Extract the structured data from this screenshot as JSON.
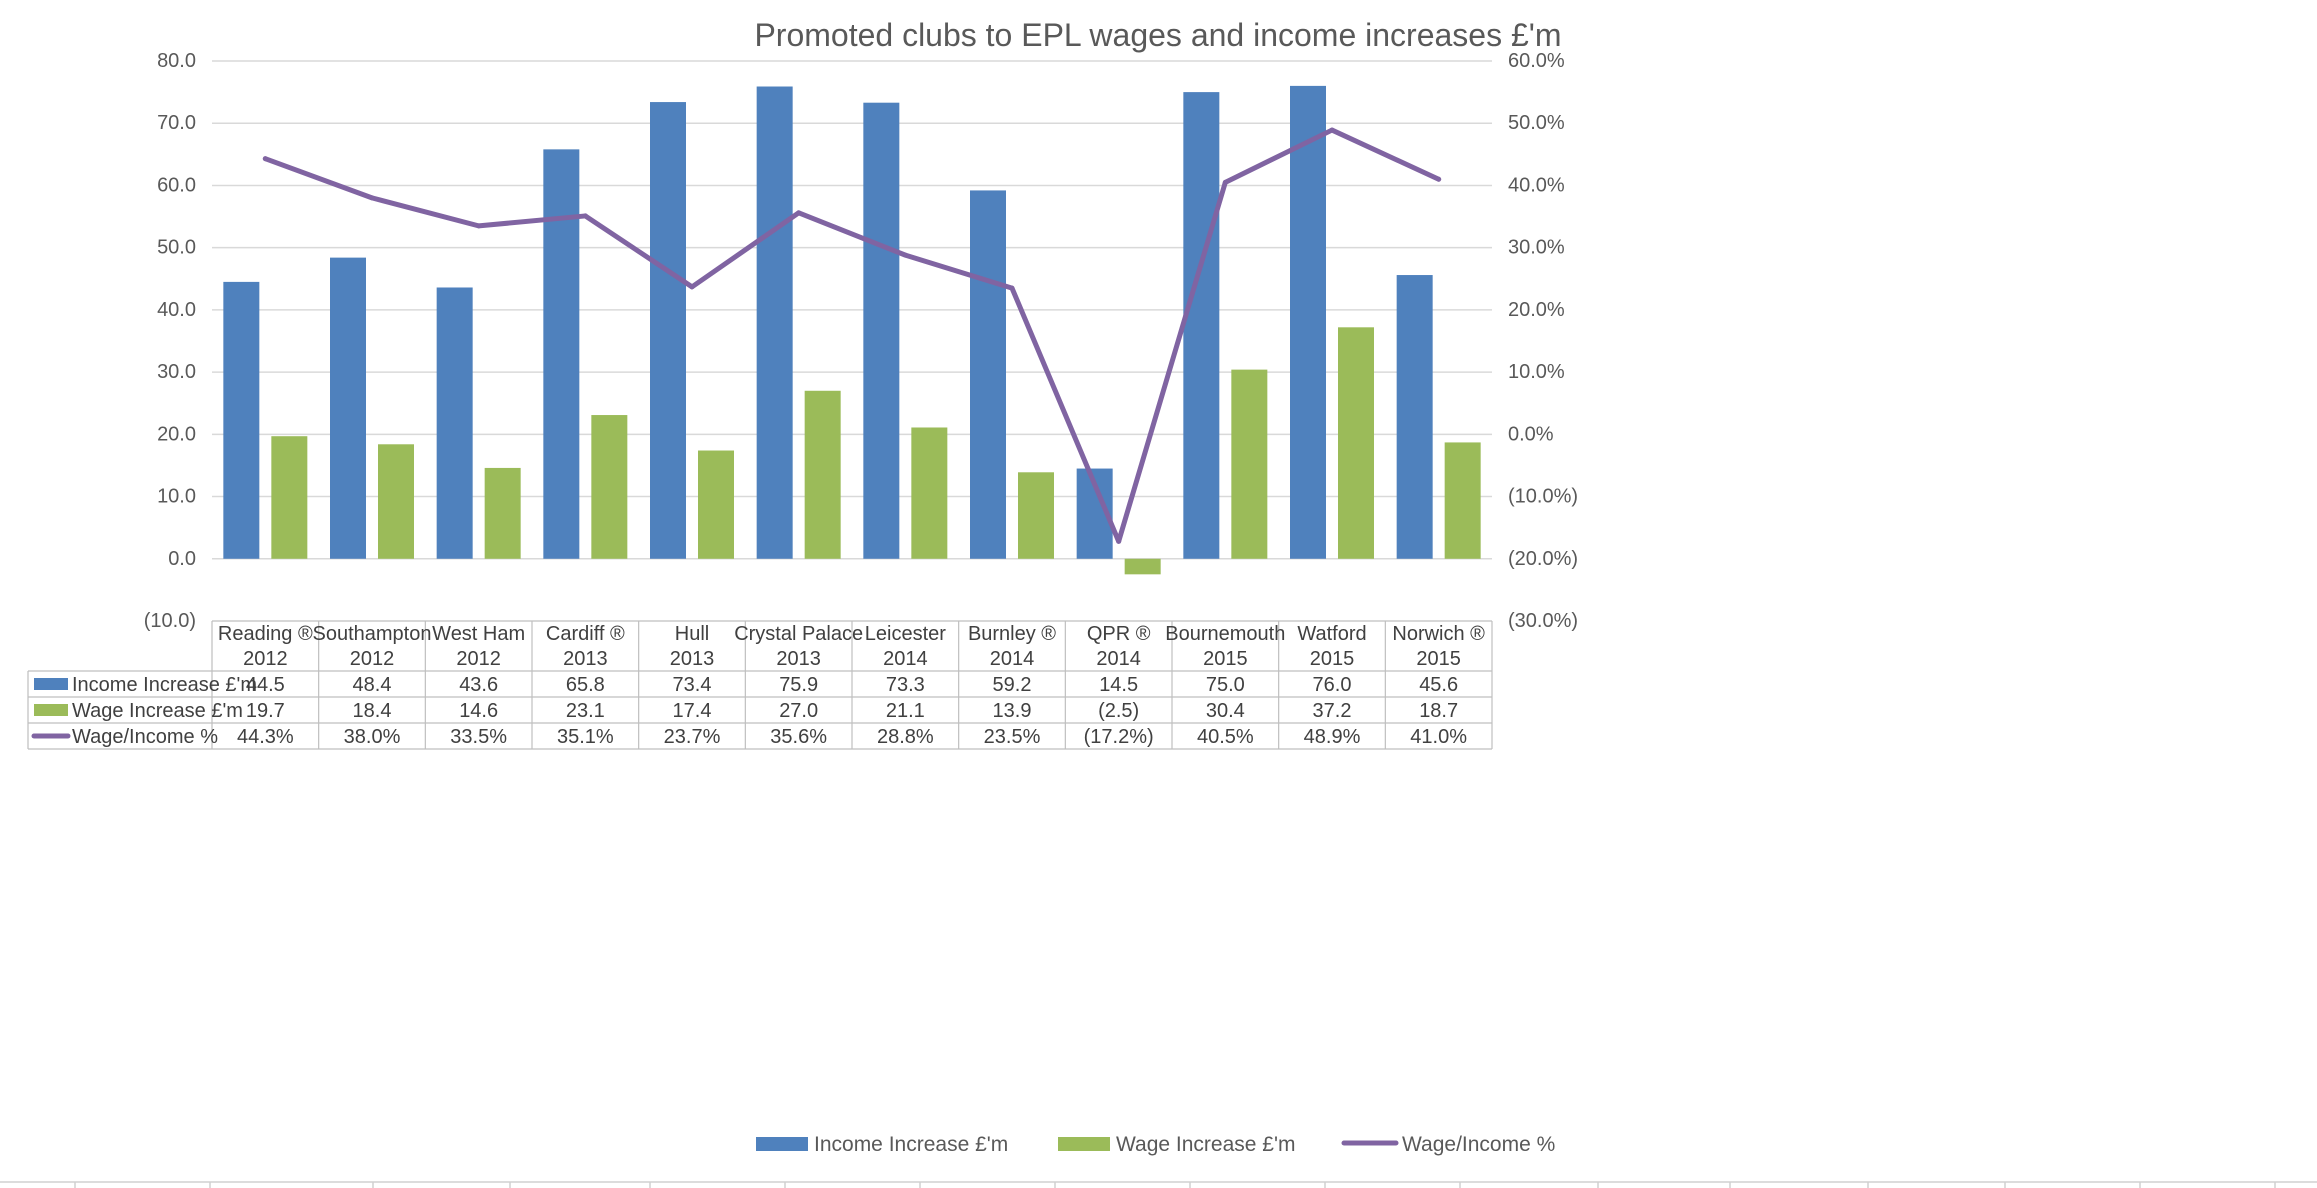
{
  "chart_data": {
    "type": "bar",
    "title": "Promoted clubs to EPL wages and income increases £'m",
    "categories": [
      {
        "club": "Reading ®",
        "year": "2012"
      },
      {
        "club": "Southampton",
        "year": "2012"
      },
      {
        "club": "West Ham",
        "year": "2012"
      },
      {
        "club": "Cardiff ®",
        "year": "2013"
      },
      {
        "club": "Hull",
        "year": "2013"
      },
      {
        "club": "Crystal Palace",
        "year": "2013"
      },
      {
        "club": "Leicester",
        "year": "2014"
      },
      {
        "club": "Burnley ®",
        "year": "2014"
      },
      {
        "club": "QPR ®",
        "year": "2014"
      },
      {
        "club": "Bournemouth",
        "year": "2015"
      },
      {
        "club": "Watford",
        "year": "2015"
      },
      {
        "club": "Norwich ®",
        "year": "2015"
      }
    ],
    "series": [
      {
        "name": "Income Increase £'m",
        "kind": "bar",
        "axis": "left",
        "color": "#4f81bd",
        "values": [
          44.5,
          48.4,
          43.6,
          65.8,
          73.4,
          75.9,
          73.3,
          59.2,
          14.5,
          75.0,
          76.0,
          45.6
        ],
        "labels": [
          "44.5",
          "48.4",
          "43.6",
          "65.8",
          "73.4",
          "75.9",
          "73.3",
          "59.2",
          "14.5",
          "75.0",
          "76.0",
          "45.6"
        ]
      },
      {
        "name": "Wage Increase £'m",
        "kind": "bar",
        "axis": "left",
        "color": "#9bbb59",
        "values": [
          19.7,
          18.4,
          14.6,
          23.1,
          17.4,
          27.0,
          21.1,
          13.9,
          -2.5,
          30.4,
          37.2,
          18.7
        ],
        "labels": [
          "19.7",
          "18.4",
          "14.6",
          "23.1",
          "17.4",
          "27.0",
          "21.1",
          "13.9",
          "(2.5)",
          "30.4",
          "37.2",
          "18.7"
        ]
      },
      {
        "name": "Wage/Income %",
        "kind": "line",
        "axis": "right",
        "color": "#8064a2",
        "values": [
          44.3,
          38.0,
          33.5,
          35.1,
          23.7,
          35.6,
          28.8,
          23.5,
          -17.2,
          40.5,
          48.9,
          41.0
        ],
        "labels": [
          "44.3%",
          "38.0%",
          "33.5%",
          "35.1%",
          "23.7%",
          "35.6%",
          "28.8%",
          "23.5%",
          "(17.2%)",
          "40.5%",
          "48.9%",
          "41.0%"
        ]
      }
    ],
    "left_axis": {
      "ylim": [
        -10,
        80
      ],
      "tick_values": [
        80,
        70,
        60,
        50,
        40,
        30,
        20,
        10,
        0,
        -10
      ],
      "tick_labels": [
        "80.0",
        "70.0",
        "60.0",
        "50.0",
        "40.0",
        "30.0",
        "20.0",
        "10.0",
        "0.0",
        "(10.0)"
      ]
    },
    "right_axis": {
      "ylim": [
        -30,
        60
      ],
      "tick_values": [
        60,
        50,
        40,
        30,
        20,
        10,
        0,
        -10,
        -20,
        -30
      ],
      "tick_labels": [
        "60.0%",
        "50.0%",
        "40.0%",
        "30.0%",
        "20.0%",
        "10.0%",
        "0.0%",
        "(10.0%)",
        "(20.0%)",
        "(30.0%)"
      ]
    },
    "grid": true,
    "legend_position": "bottom",
    "data_table": true
  }
}
